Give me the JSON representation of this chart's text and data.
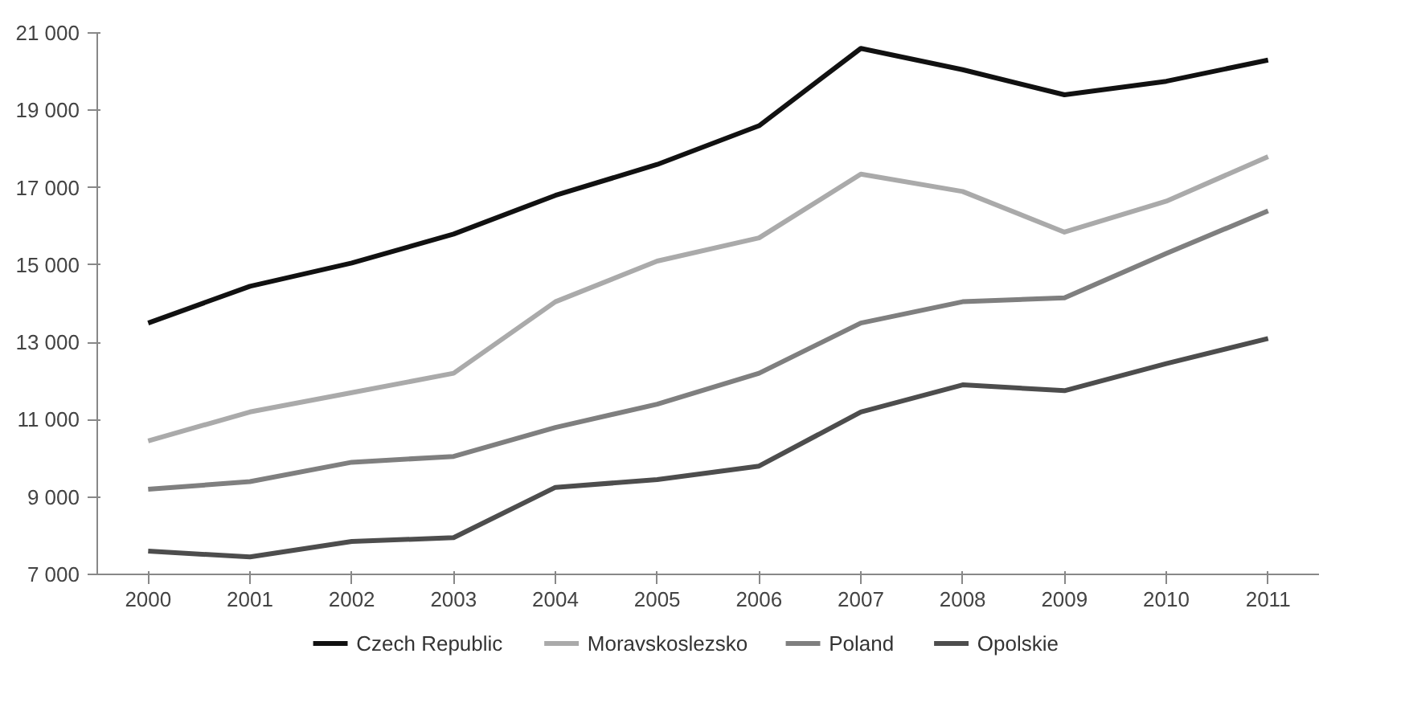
{
  "chart_data": {
    "type": "line",
    "categories": [
      "2000",
      "2001",
      "2002",
      "2003",
      "2004",
      "2005",
      "2006",
      "2007",
      "2008",
      "2009",
      "2010",
      "2011"
    ],
    "series": [
      {
        "name": "Czech Republic",
        "color": "#111111",
        "values": [
          13500,
          14450,
          15050,
          15800,
          16800,
          17600,
          18600,
          20600,
          20050,
          19400,
          19750,
          20300
        ]
      },
      {
        "name": "Moravskoslezsko",
        "color": "#aaaaaa",
        "values": [
          10450,
          11200,
          11700,
          12200,
          14050,
          15100,
          15700,
          17350,
          16900,
          15850,
          16650,
          17800
        ]
      },
      {
        "name": "Poland",
        "color": "#7f7f7f",
        "values": [
          9200,
          9400,
          9900,
          10050,
          10800,
          11400,
          12200,
          13500,
          14050,
          14150,
          15300,
          16400
        ]
      },
      {
        "name": "Opolskie",
        "color": "#4d4d4d",
        "values": [
          7600,
          7450,
          7850,
          7950,
          9250,
          9450,
          9800,
          11200,
          11900,
          11750,
          12450,
          13100
        ]
      }
    ],
    "ylim": [
      7000,
      21000
    ],
    "yticks": [
      {
        "value": 7000,
        "label": "7 000"
      },
      {
        "value": 9000,
        "label": "9 000"
      },
      {
        "value": 11000,
        "label": "11 000"
      },
      {
        "value": 13000,
        "label": "13 000"
      },
      {
        "value": 15000,
        "label": "15 000"
      },
      {
        "value": 17000,
        "label": "17 000"
      },
      {
        "value": 19000,
        "label": "19 000"
      },
      {
        "value": 21000,
        "label": "21 000"
      }
    ],
    "legend": "bottom",
    "marker": "none",
    "line_style": "solid"
  }
}
